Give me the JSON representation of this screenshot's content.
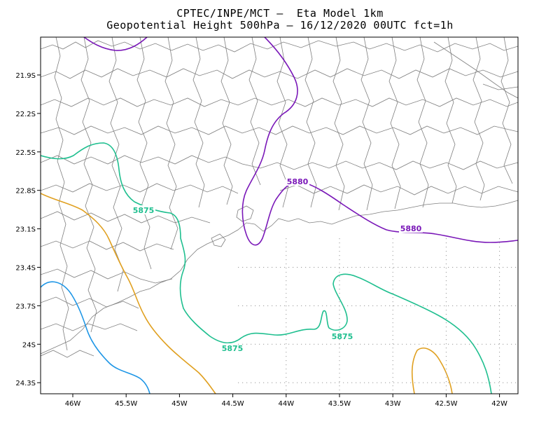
{
  "title_line1": "CPTEC/INPE/MCT –  Eta Model 1km",
  "title_line2": "Geopotential Height 500hPa – 16/12/2020 00UTC fct=1h",
  "colors": {
    "borders": "#7f7f7f",
    "c5880": "#7a18b8",
    "c5875": "#1fbf8f",
    "c5870": "#e0a020",
    "c5865": "#1e96e6",
    "frame": "#000000"
  },
  "axes": {
    "x_labels": [
      "46W",
      "45.5W",
      "45W",
      "44.5W",
      "44W",
      "43.5W",
      "43W",
      "42.5W",
      "42W"
    ],
    "y_labels": [
      "21.9S",
      "22.2S",
      "22.5S",
      "22.8S",
      "23.1S",
      "23.4S",
      "23.7S",
      "24S",
      "24.3S"
    ]
  },
  "contour_labels": {
    "c5880_a": "5880",
    "c5880_b": "5880",
    "c5875_a": "5875",
    "c5875_b": "5875",
    "c5875_c": "5875"
  }
}
